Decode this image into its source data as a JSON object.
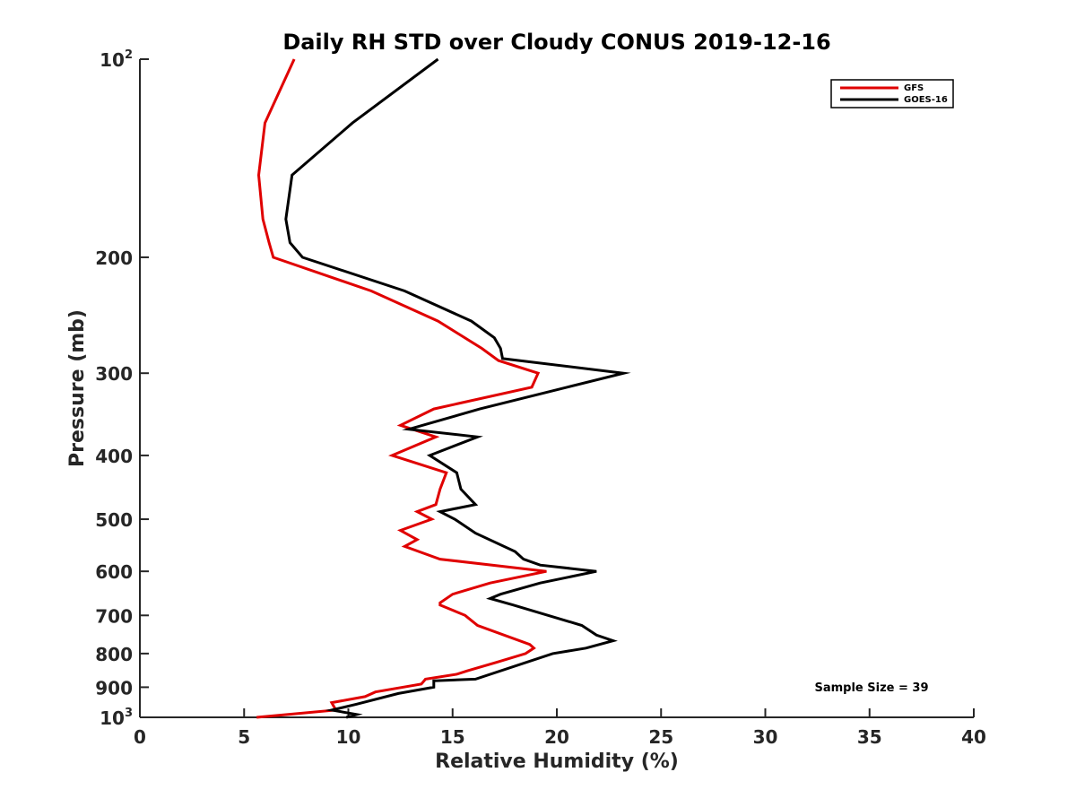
{
  "chart_data": {
    "type": "line",
    "title": "Daily RH STD over Cloudy CONUS 2019-12-16",
    "xlabel": "Relative Humidity (%)",
    "ylabel": "Pressure (mb)",
    "xlim": [
      0,
      40
    ],
    "ylim": [
      100,
      1000
    ],
    "y_scale": "log",
    "y_reversed": true,
    "grid": false,
    "legend_position": "top-right",
    "x_ticks": [
      "0",
      "5",
      "10",
      "15",
      "20",
      "25",
      "30",
      "35",
      "40"
    ],
    "y_ticks": [
      {
        "value": 100,
        "base": "10",
        "exp": "2"
      },
      {
        "value": 200,
        "label": "200"
      },
      {
        "value": 300,
        "label": "300"
      },
      {
        "value": 400,
        "label": "400"
      },
      {
        "value": 500,
        "label": "500"
      },
      {
        "value": 600,
        "label": "600"
      },
      {
        "value": 700,
        "label": "700"
      },
      {
        "value": 800,
        "label": "800"
      },
      {
        "value": 900,
        "label": "900"
      },
      {
        "value": 1000,
        "base": "10",
        "exp": "3"
      }
    ],
    "annotation": "Sample Size = 39",
    "series": [
      {
        "name": "GFS",
        "color": "#e00000",
        "points": [
          [
            7.4,
            100
          ],
          [
            6.0,
            125
          ],
          [
            5.7,
            150
          ],
          [
            5.9,
            175
          ],
          [
            6.2,
            190
          ],
          [
            6.4,
            200
          ],
          [
            11.1,
            225
          ],
          [
            14.3,
            250
          ],
          [
            16.4,
            275
          ],
          [
            17.2,
            287
          ],
          [
            19.1,
            300
          ],
          [
            18.8,
            315
          ],
          [
            14.1,
            340
          ],
          [
            12.5,
            360
          ],
          [
            14.2,
            375
          ],
          [
            12.1,
            400
          ],
          [
            14.7,
            425
          ],
          [
            14.4,
            450
          ],
          [
            14.2,
            475
          ],
          [
            13.3,
            487
          ],
          [
            14.0,
            500
          ],
          [
            12.5,
            520
          ],
          [
            13.3,
            537
          ],
          [
            12.7,
            550
          ],
          [
            14.4,
            575
          ],
          [
            19.5,
            600
          ],
          [
            16.8,
            625
          ],
          [
            15.0,
            650
          ],
          [
            14.4,
            670
          ],
          [
            14.4,
            675
          ],
          [
            15.6,
            700
          ],
          [
            16.2,
            725
          ],
          [
            18.7,
            775
          ],
          [
            18.9,
            785
          ],
          [
            18.5,
            800
          ],
          [
            17.1,
            825
          ],
          [
            15.7,
            850
          ],
          [
            15.2,
            860
          ],
          [
            13.7,
            875
          ],
          [
            13.5,
            890
          ],
          [
            11.3,
            915
          ],
          [
            10.8,
            930
          ],
          [
            9.2,
            950
          ],
          [
            9.4,
            975
          ],
          [
            5.6,
            1000
          ]
        ]
      },
      {
        "name": "GOES-16",
        "color": "#000000",
        "points": [
          [
            14.3,
            100
          ],
          [
            10.2,
            125
          ],
          [
            7.3,
            150
          ],
          [
            7.0,
            175
          ],
          [
            7.2,
            190
          ],
          [
            7.8,
            200
          ],
          [
            12.7,
            225
          ],
          [
            15.9,
            250
          ],
          [
            17.0,
            265
          ],
          [
            17.3,
            275
          ],
          [
            17.4,
            285
          ],
          [
            23.2,
            300
          ],
          [
            20.5,
            315
          ],
          [
            16.3,
            340
          ],
          [
            12.9,
            365
          ],
          [
            16.2,
            375
          ],
          [
            13.9,
            400
          ],
          [
            15.2,
            425
          ],
          [
            15.4,
            450
          ],
          [
            16.1,
            475
          ],
          [
            14.4,
            487
          ],
          [
            15.1,
            500
          ],
          [
            16.1,
            525
          ],
          [
            18.0,
            560
          ],
          [
            18.4,
            575
          ],
          [
            19.2,
            587
          ],
          [
            21.9,
            600
          ],
          [
            19.2,
            625
          ],
          [
            17.3,
            650
          ],
          [
            16.8,
            660
          ],
          [
            17.9,
            675
          ],
          [
            21.2,
            725
          ],
          [
            21.9,
            750
          ],
          [
            22.7,
            765
          ],
          [
            21.4,
            785
          ],
          [
            19.8,
            800
          ],
          [
            16.1,
            875
          ],
          [
            14.1,
            880
          ],
          [
            14.1,
            900
          ],
          [
            12.4,
            920
          ],
          [
            10.4,
            955
          ],
          [
            9.2,
            975
          ],
          [
            10.4,
            990
          ],
          [
            9.9,
            1000
          ]
        ]
      }
    ]
  }
}
